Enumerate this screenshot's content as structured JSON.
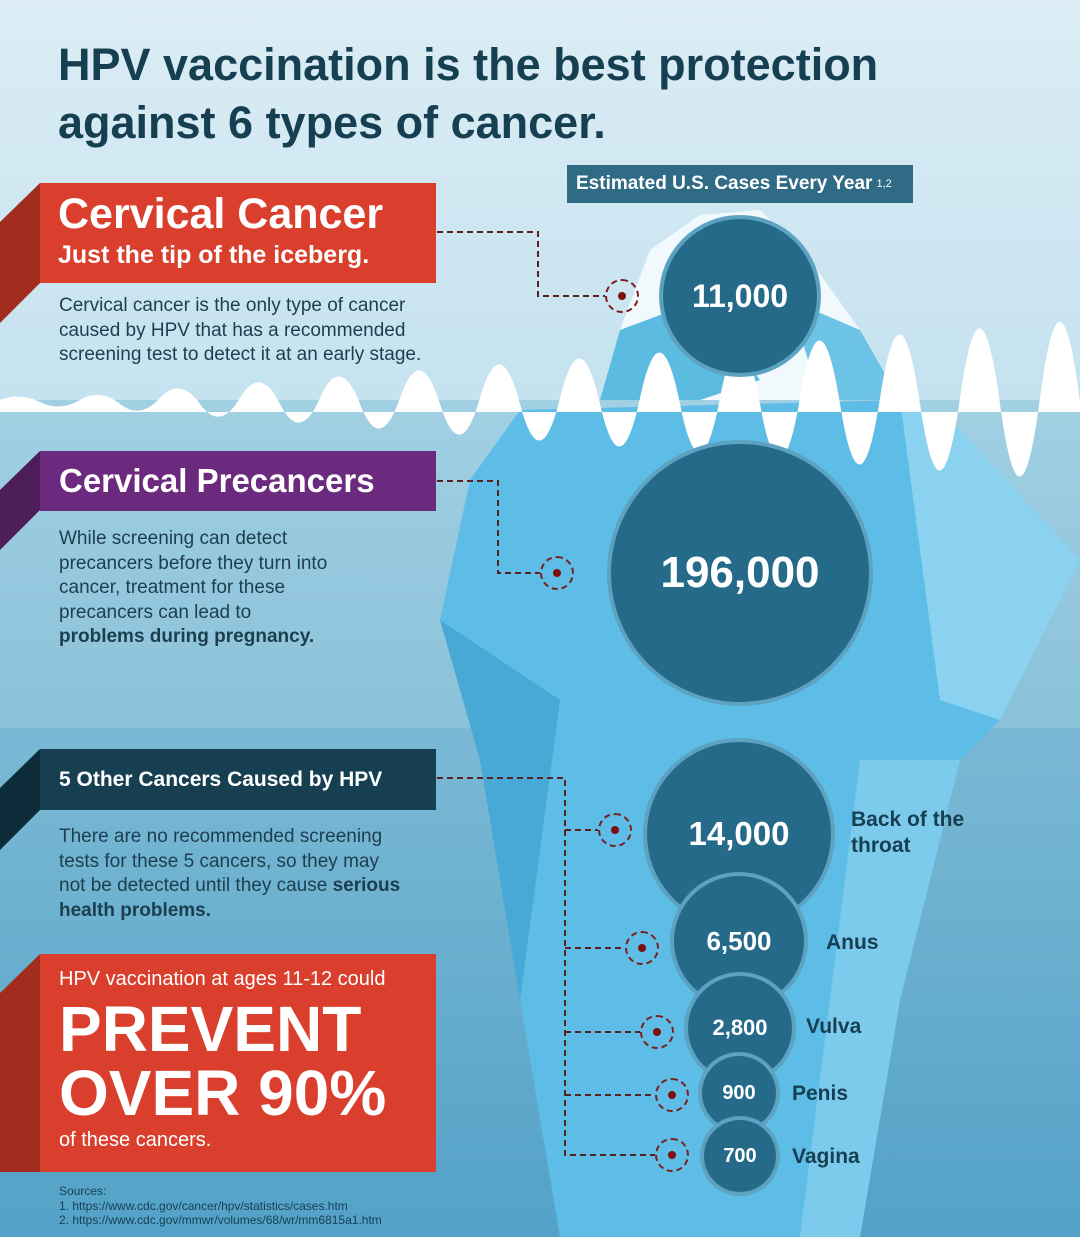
{
  "title": "HPV vaccination is the best protection against 6 types of cancer.",
  "cases_header": "Estimated U.S. Cases Every Year",
  "cases_header_sup": "1,2",
  "cervical": {
    "title": "Cervical Cancer",
    "subtitle": "Just the tip of the iceberg.",
    "text": "Cervical cancer is the only type of cancer caused by HPV that has a recommended screening test to detect it at an early stage.",
    "cases": "11,000"
  },
  "precancers": {
    "title": "Cervical Precancers",
    "text": "While screening can detect precancers before they turn into cancer, treatment for these precancers can lead to ",
    "text_bold": "problems during pregnancy.",
    "cases": "196,000"
  },
  "other": {
    "title": "5 Other Cancers Caused by HPV",
    "text": "There are no recommended screening tests for these 5 cancers, so they may not be detected until they cause ",
    "text_bold": "serious health problems.",
    "items": [
      {
        "cases": "14,000",
        "site": "Back of the throat"
      },
      {
        "cases": "6,500",
        "site": "Anus"
      },
      {
        "cases": "2,800",
        "site": "Vulva"
      },
      {
        "cases": "900",
        "site": "Penis"
      },
      {
        "cases": "700",
        "site": "Vagina"
      }
    ]
  },
  "prevent": {
    "lead": "HPV vaccination at ages 11-12 could",
    "big1": "PREVENT",
    "big2": "OVER 90%",
    "tail": "of these cancers."
  },
  "sources": {
    "label": "Sources:",
    "items": [
      "1. https://www.cdc.gov/cancer/hpv/statistics/cases.htm",
      "2. https://www.cdc.gov/mmwr/volumes/68/wr/mm6815a1.htm"
    ]
  },
  "colors": {
    "red": "#d93f2c",
    "purple": "#6b2a7d",
    "navy": "#163f52",
    "bubble": "#266a8a"
  }
}
